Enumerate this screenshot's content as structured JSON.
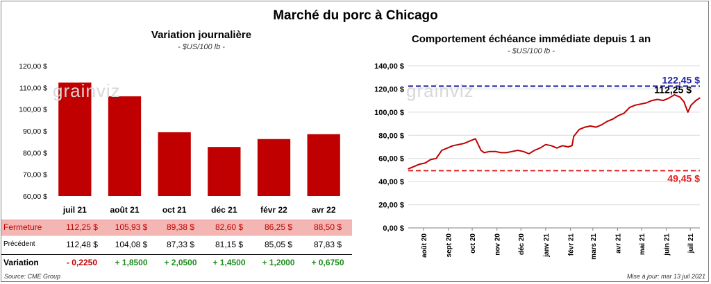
{
  "title": "Marché du porc à Chicago",
  "left": {
    "title": "Variation  journalière",
    "unit": "- $US/100 lb -",
    "watermark": "grainviz",
    "rows": {
      "close_label": "Fermeture",
      "close": [
        "112,25  $",
        "105,93  $",
        "89,38  $",
        "82,60  $",
        "86,25  $",
        "88,50  $"
      ],
      "prev_label": "Précédent",
      "prev": [
        "112,48  $",
        "104,08  $",
        "87,33  $",
        "81,15  $",
        "85,05  $",
        "87,83  $"
      ],
      "var_label": "Variation",
      "var": [
        "- 0,2250",
        "+ 1,8500",
        "+ 2,0500",
        "+ 1,4500",
        "+ 1,2000",
        "+ 0,6750"
      ]
    }
  },
  "right": {
    "title": "Comportement  échéance immédiate depuis 1 an",
    "unit": "- $US/100 lb -",
    "watermark": "grainviz",
    "high_label": "122,45 $",
    "low_label": "49,45 $",
    "last_label": "112,25 $"
  },
  "footer": {
    "source": "Source: CME Group",
    "update": "Mise à jour: mar 13 juil 2021"
  },
  "colors": {
    "bar": "#c00000",
    "line": "#c00000",
    "high": "#1f1fa6",
    "low": "#e02020"
  },
  "chart_data": [
    {
      "type": "bar",
      "categories": [
        "juil 21",
        "août 21",
        "oct 21",
        "déc 21",
        "févr 22",
        "avr 22"
      ],
      "values": [
        112.25,
        105.93,
        89.38,
        82.6,
        86.25,
        88.5
      ],
      "title": "Variation  journalière",
      "subtitle": "- $US/100 lb -",
      "ylim": [
        60,
        120
      ],
      "yticks": [
        60,
        70,
        80,
        90,
        100,
        110,
        120
      ],
      "ytick_labels": [
        "60,00 $",
        "70,00 $",
        "80,00 $",
        "90,00 $",
        "100,00 $",
        "110,00 $",
        "120,00 $"
      ]
    },
    {
      "type": "line",
      "title": "Comportement  échéance immédiate depuis 1 an",
      "subtitle": "- $US/100 lb -",
      "ylim": [
        0,
        140
      ],
      "yticks": [
        0,
        20,
        40,
        60,
        80,
        100,
        120,
        140
      ],
      "ytick_labels": [
        "0,00 $",
        "20,00 $",
        "40,00 $",
        "60,00 $",
        "80,00 $",
        "100,00 $",
        "120,00 $",
        "140,00 $"
      ],
      "xlim": [
        "2020-07-13",
        "2021-07-13"
      ],
      "xticks": [
        "2020-08-01",
        "2020-09-01",
        "2020-10-01",
        "2020-11-01",
        "2020-12-01",
        "2021-01-01",
        "2021-02-01",
        "2021-03-01",
        "2021-04-01",
        "2021-05-01",
        "2021-06-01",
        "2021-07-01"
      ],
      "xtick_labels": [
        "août 20",
        "sept 20",
        "oct 20",
        "nov 20",
        "déc 20",
        "janv 21",
        "févr 21",
        "mars 21",
        "avr 21",
        "mai 21",
        "juin 21",
        "juil 21"
      ],
      "hlines": [
        {
          "value": 122.45,
          "label": "122,45 $",
          "color": "#1f1fa6"
        },
        {
          "value": 49.45,
          "label": "49,45 $",
          "color": "#e02020"
        }
      ],
      "series": [
        {
          "x": [
            "2020-07-13",
            "2020-07-20",
            "2020-07-27",
            "2020-08-03",
            "2020-08-10",
            "2020-08-17",
            "2020-08-24",
            "2020-08-31",
            "2020-09-07",
            "2020-09-14",
            "2020-09-21",
            "2020-09-28",
            "2020-10-05",
            "2020-10-12",
            "2020-10-14",
            "2020-10-16",
            "2020-10-23",
            "2020-10-30",
            "2020-11-06",
            "2020-11-13",
            "2020-11-20",
            "2020-11-27",
            "2020-12-04",
            "2020-12-11",
            "2020-12-18",
            "2020-12-25",
            "2021-01-01",
            "2021-01-08",
            "2021-01-15",
            "2021-01-22",
            "2021-01-29",
            "2021-02-03",
            "2021-02-05",
            "2021-02-12",
            "2021-02-19",
            "2021-02-26",
            "2021-03-05",
            "2021-03-12",
            "2021-03-19",
            "2021-03-26",
            "2021-04-02",
            "2021-04-09",
            "2021-04-16",
            "2021-04-23",
            "2021-04-30",
            "2021-05-07",
            "2021-05-14",
            "2021-05-21",
            "2021-05-28",
            "2021-06-04",
            "2021-06-11",
            "2021-06-18",
            "2021-06-23",
            "2021-06-28",
            "2021-07-02",
            "2021-07-08",
            "2021-07-13"
          ],
          "y": [
            51,
            53,
            55,
            56,
            59,
            60,
            67,
            69,
            71,
            72,
            73,
            75,
            77,
            67,
            66,
            65,
            66,
            66,
            65,
            65,
            66,
            67,
            66,
            64,
            67,
            69,
            72,
            71,
            69,
            71,
            70,
            71,
            79,
            85,
            87,
            88,
            87,
            89,
            92,
            94,
            97,
            99,
            104,
            106,
            107,
            108,
            110,
            111,
            110,
            112,
            115,
            113,
            109,
            100,
            106,
            110,
            112.25
          ]
        }
      ]
    }
  ]
}
